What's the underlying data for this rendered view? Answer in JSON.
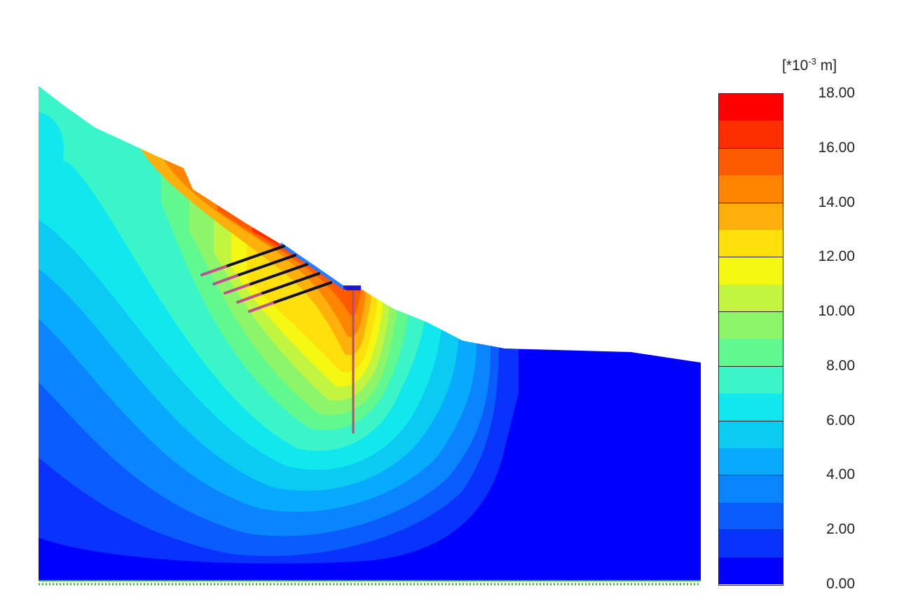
{
  "legend": {
    "unit_prefix": "[*10",
    "unit_exponent": "-3",
    "unit_suffix": " m]",
    "min": 0,
    "max": 18,
    "band_step": 1,
    "ticks": [
      "18.00",
      "16.00",
      "14.00",
      "12.00",
      "10.00",
      "8.00",
      "6.00",
      "4.00",
      "2.00",
      "0.00"
    ],
    "colors": [
      "#0000ff",
      "#0a32ff",
      "#0b5cff",
      "#0a85ff",
      "#07aaff",
      "#0bcbf3",
      "#10e8ee",
      "#3af5c8",
      "#60f990",
      "#8df56a",
      "#c2f540",
      "#f4f811",
      "#ffdf0c",
      "#ffb00a",
      "#ff8500",
      "#ff5a00",
      "#ff2e00",
      "#ff0000"
    ]
  },
  "model": {
    "description_colors": {
      "soil_nail_bonded": "#c0508f",
      "soil_nail_free": "#111111",
      "wall_pile": "#b05070",
      "facing": "#2b7bff",
      "fixed_base": "#33aa33"
    },
    "soil_nail_count": 5,
    "pile_count": 1
  }
}
